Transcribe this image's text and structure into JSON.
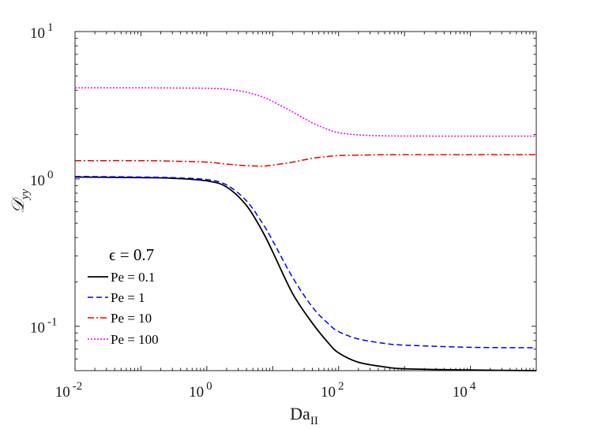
{
  "chart_data": {
    "type": "line",
    "title": "",
    "xlabel": "Da",
    "xlabel_subscript": "II",
    "ylabel": "𝒟",
    "ylabel_subscript": "yy",
    "xscale": "log",
    "yscale": "log",
    "xlim": [
      0.01,
      100000
    ],
    "ylim": [
      0.05,
      10
    ],
    "xticks": [
      {
        "value": 0.01,
        "base": "10",
        "exp": "-2"
      },
      {
        "value": 1,
        "base": "10",
        "exp": "0"
      },
      {
        "value": 100,
        "base": "10",
        "exp": "2"
      },
      {
        "value": 10000,
        "base": "10",
        "exp": "4"
      }
    ],
    "yticks": [
      {
        "value": 0.1,
        "base": "10",
        "exp": "-1"
      },
      {
        "value": 1,
        "base": "10",
        "exp": "0"
      },
      {
        "value": 10,
        "base": "10",
        "exp": "1"
      }
    ],
    "annotation": "ϵ = 0.7",
    "legend_position": "lower-left",
    "x": [
      0.01,
      0.1,
      0.3,
      1,
      2,
      4,
      7,
      10,
      20,
      40,
      70,
      100,
      200,
      500,
      1000,
      10000,
      100000
    ],
    "series": [
      {
        "name": "Pe = 0.1",
        "color": "#000000",
        "dash": "solid",
        "values": [
          1.03,
          1.02,
          1.01,
          0.97,
          0.88,
          0.66,
          0.44,
          0.32,
          0.167,
          0.105,
          0.077,
          0.066,
          0.057,
          0.053,
          0.0515,
          0.0505,
          0.05
        ]
      },
      {
        "name": "Pe = 1",
        "color": "#0000ee",
        "dash": "dashed",
        "values": [
          1.04,
          1.03,
          1.02,
          0.99,
          0.91,
          0.71,
          0.5,
          0.38,
          0.215,
          0.135,
          0.104,
          0.092,
          0.082,
          0.0765,
          0.0745,
          0.072,
          0.0715
        ]
      },
      {
        "name": "Pe = 10",
        "color": "#ee0000",
        "dash": "dashdot",
        "values": [
          1.33,
          1.33,
          1.32,
          1.3,
          1.26,
          1.23,
          1.22,
          1.24,
          1.3,
          1.38,
          1.42,
          1.44,
          1.45,
          1.46,
          1.46,
          1.46,
          1.46
        ]
      },
      {
        "name": "Pe = 100",
        "color": "#ee00ee",
        "dash": "dotted",
        "values": [
          4.15,
          4.15,
          4.14,
          4.12,
          4.06,
          3.88,
          3.6,
          3.35,
          2.85,
          2.4,
          2.16,
          2.06,
          1.99,
          1.96,
          1.955,
          1.95,
          1.95
        ]
      }
    ]
  }
}
